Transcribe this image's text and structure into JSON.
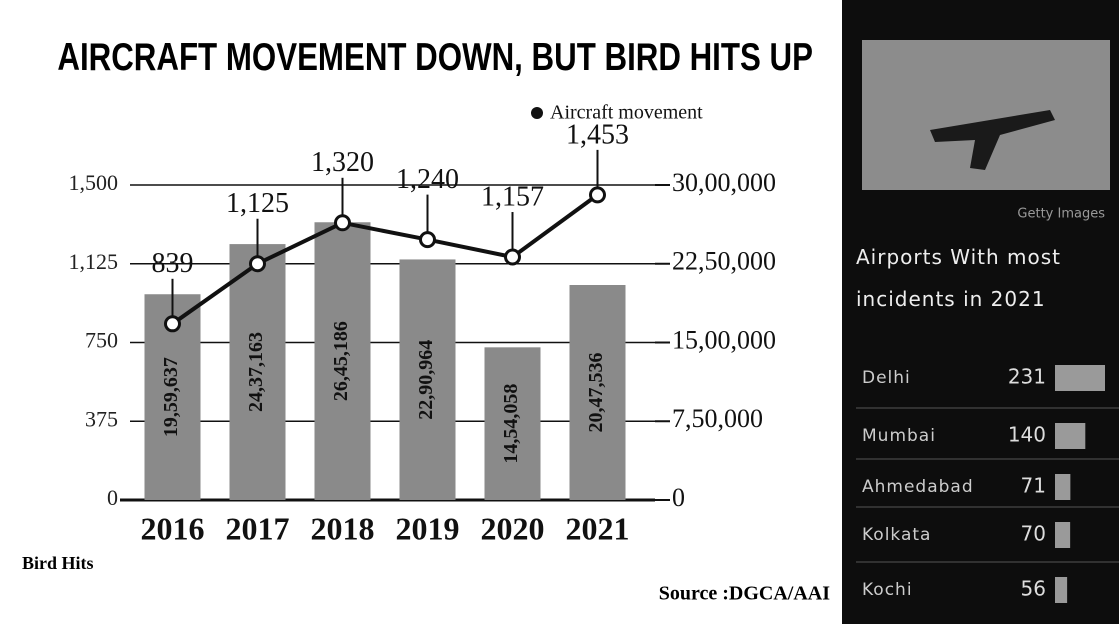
{
  "chart_data": [
    {
      "type": "combo",
      "title": "AIRCRAFT MOVEMENT DOWN, BUT BIRD HITS UP",
      "categories": [
        "2016",
        "2017",
        "2018",
        "2019",
        "2020",
        "2021"
      ],
      "series": [
        {
          "type": "bar",
          "axis": "y2",
          "color": "#8a8a8a",
          "values": [
            1959637,
            2437163,
            2645186,
            2290964,
            1454058,
            2047536
          ],
          "value_labels": [
            "19,59,637",
            "24,37,163",
            "26,45,186",
            "22,90,964",
            "14,54,058",
            "20,47,536"
          ]
        },
        {
          "type": "line",
          "name": "Aircraft movement",
          "color": "#111111",
          "values": [
            839,
            1125,
            1320,
            1240,
            1157,
            1453
          ],
          "value_labels": [
            "839",
            "1,125",
            "1,320",
            "1,240",
            "1,157",
            "1,453"
          ]
        }
      ],
      "ylabel": "Bird Hits",
      "ylim": [
        0,
        1500
      ],
      "yticks": [
        0,
        375,
        750,
        {
          "value": 1125,
          "label": "1,125"
        },
        {
          "value": 1500,
          "label": "1,500"
        }
      ],
      "y2lim": [
        0,
        3000000
      ],
      "y2ticks": [
        0,
        {
          "value": 750000,
          "label": "7,50,000"
        },
        {
          "value": 1500000,
          "label": "15,00,000"
        },
        {
          "value": 2250000,
          "label": "22,50,000"
        },
        {
          "value": 3000000,
          "label": "30,00,000"
        }
      ],
      "grid": true,
      "source": "Source :DGCA/AAI"
    },
    {
      "type": "bar",
      "orientation": "horizontal",
      "title": "Airports With most incidents in 2021",
      "image_credit": "Getty Images",
      "categories": [
        "Delhi",
        "Mumbai",
        "Ahmedabad",
        "Kolkata",
        "Kochi"
      ],
      "values": [
        231,
        140,
        71,
        70,
        56
      ],
      "color": "#9a9a9a"
    }
  ]
}
